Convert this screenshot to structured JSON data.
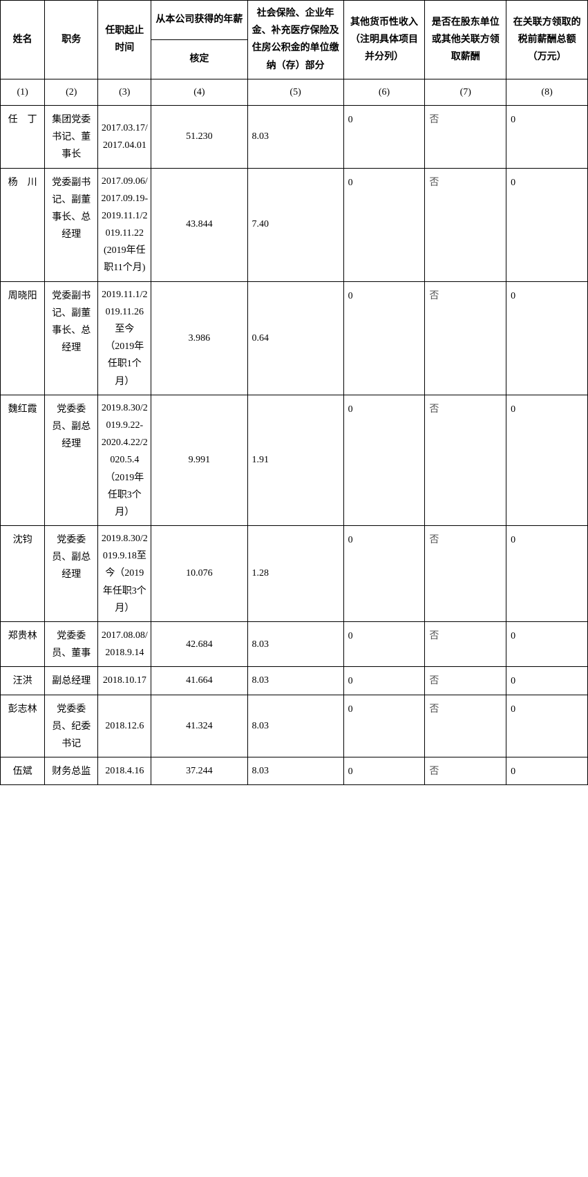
{
  "headers": {
    "name": "姓名",
    "title": "职务",
    "tenure": "任职起止时间",
    "salary_main": "从本公司获得的年薪",
    "salary_sub": "核定",
    "insurance": "社会保险、企业年金、补充医疗保险及住房公积金的单位缴纳（存）部分",
    "other_income": "其他货币性收入（注明具体项目并分列）",
    "shareholder": "是否在股东单位或其他关联方领取薪酬",
    "related_party": "在关联方领取的税前薪酬总额（万元）"
  },
  "col_nums": {
    "c1": "(1)",
    "c2": "(2)",
    "c3": "(3)",
    "c4": "(4)",
    "c5": "(5)",
    "c6": "(6)",
    "c7": "(7)",
    "c8": "(8)"
  },
  "rows": [
    {
      "name": "任　丁",
      "title": "集团党委书记、董事长",
      "tenure": "2017.03.17/2017.04.01",
      "salary": "51.230",
      "insurance": "8.03",
      "other": "0",
      "shareholder": "否",
      "related": "0"
    },
    {
      "name": "杨　川",
      "title": "党委副书记、副董事长、总经理",
      "tenure": "2017.09.06/2017.09.19-2019.11.1/2019.11.22 (2019年任职11个月)",
      "salary": "43.844",
      "insurance": "7.40",
      "other": "0",
      "shareholder": "否",
      "related": "0"
    },
    {
      "name": "周晓阳",
      "title": "党委副书记、副董事长、总经理",
      "tenure": "2019.11.1/2019.11.26至今（2019年任职1个月）",
      "salary": "3.986",
      "insurance": "0.64",
      "other": "0",
      "shareholder": "否",
      "related": "0"
    },
    {
      "name": "魏红霞",
      "title": "党委委员、副总经理",
      "tenure": "2019.8.30/2019.9.22-2020.4.22/2020.5.4（2019年任职3个月）",
      "salary": "9.991",
      "insurance": "1.91",
      "other": "0",
      "shareholder": "否",
      "related": "0"
    },
    {
      "name": "沈钧",
      "title": "党委委员、副总经理",
      "tenure": "2019.8.30/2019.9.18至今（2019年任职3个月）",
      "salary": "10.076",
      "insurance": "1.28",
      "other": "0",
      "shareholder": "否",
      "related": "0"
    },
    {
      "name": "郑贵林",
      "title": "党委委员、董事",
      "tenure": "2017.08.08/2018.9.14",
      "salary": "42.684",
      "insurance": "8.03",
      "other": "0",
      "shareholder": "否",
      "related": "0"
    },
    {
      "name": "汪洪",
      "title": "副总经理",
      "tenure": "2018.10.17",
      "salary": "41.664",
      "insurance": "8.03",
      "other": "0",
      "shareholder": "否",
      "related": "0"
    },
    {
      "name": "彭志林",
      "title": "党委委员、纪委书记",
      "tenure": "2018.12.6",
      "salary": "41.324",
      "insurance": "8.03",
      "other": "0",
      "shareholder": "否",
      "related": "0"
    },
    {
      "name": "伍斌",
      "title": "财务总监",
      "tenure": "2018.4.16",
      "salary": "37.244",
      "insurance": "8.03",
      "other": "0",
      "shareholder": "否",
      "related": "0"
    }
  ]
}
